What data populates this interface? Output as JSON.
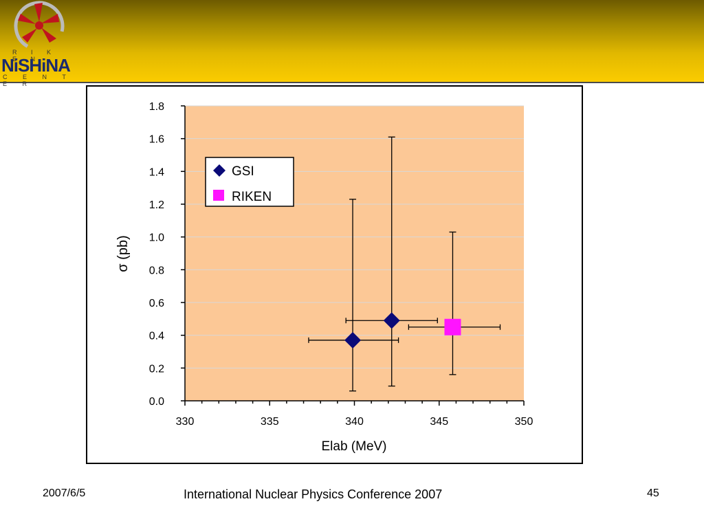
{
  "header": {
    "logo": {
      "top_text": "R I K E N",
      "main_text": "NiSHiNA",
      "bottom_text": "C E N T E R"
    },
    "colors": {
      "band_dark": "#6d5a00",
      "band_light": "#fbcc00"
    }
  },
  "chart_data": {
    "type": "scatter",
    "xlabel": "Elab (MeV)",
    "ylabel": "σ (pb)",
    "xlim": [
      330,
      350
    ],
    "ylim": [
      0.0,
      1.8
    ],
    "x_ticks": [
      "330",
      "335",
      "340",
      "345",
      "350"
    ],
    "y_ticks": [
      "0.0",
      "0.2",
      "0.4",
      "0.6",
      "0.8",
      "1.0",
      "1.2",
      "1.4",
      "1.6",
      "1.8"
    ],
    "grid": true,
    "legend_position": "top-left",
    "plot_background": "#fcc896",
    "series": [
      {
        "name": "GSI",
        "marker": "diamond",
        "color": "#0a0a78",
        "points": [
          {
            "x": 339.9,
            "y": 0.37,
            "x_low": 337.3,
            "x_high": 342.6,
            "y_low": 0.06,
            "y_high": 1.23
          },
          {
            "x": 342.2,
            "y": 0.49,
            "x_low": 339.5,
            "x_high": 344.9,
            "y_low": 0.09,
            "y_high": 1.61
          }
        ]
      },
      {
        "name": "RIKEN",
        "marker": "square",
        "color": "#ff14ff",
        "points": [
          {
            "x": 345.8,
            "y": 0.45,
            "x_low": 343.2,
            "x_high": 348.6,
            "y_low": 0.16,
            "y_high": 1.03
          }
        ]
      }
    ]
  },
  "footer": {
    "date": "2007/6/5",
    "title": "International Nuclear Physics Conference 2007",
    "page": "45"
  }
}
